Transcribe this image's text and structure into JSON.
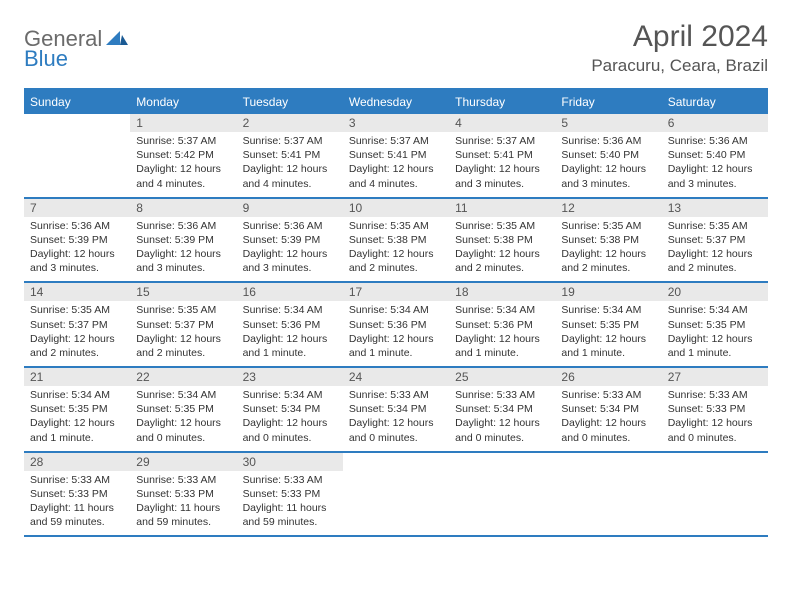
{
  "logo": {
    "general": "General",
    "blue": "Blue"
  },
  "title": "April 2024",
  "location": "Paracuru, Ceara, Brazil",
  "colors": {
    "accent": "#2e7cc0",
    "header_bg": "#2e7cc0",
    "header_text": "#ffffff",
    "daynum_bg": "#e9e9e9",
    "text": "#333333",
    "title_text": "#555555",
    "logo_gray": "#6b6b6b"
  },
  "weekdays": [
    "Sunday",
    "Monday",
    "Tuesday",
    "Wednesday",
    "Thursday",
    "Friday",
    "Saturday"
  ],
  "leading_blanks": 1,
  "days": [
    {
      "n": 1,
      "sunrise": "5:37 AM",
      "sunset": "5:42 PM",
      "daylight": "12 hours and 4 minutes."
    },
    {
      "n": 2,
      "sunrise": "5:37 AM",
      "sunset": "5:41 PM",
      "daylight": "12 hours and 4 minutes."
    },
    {
      "n": 3,
      "sunrise": "5:37 AM",
      "sunset": "5:41 PM",
      "daylight": "12 hours and 4 minutes."
    },
    {
      "n": 4,
      "sunrise": "5:37 AM",
      "sunset": "5:41 PM",
      "daylight": "12 hours and 3 minutes."
    },
    {
      "n": 5,
      "sunrise": "5:36 AM",
      "sunset": "5:40 PM",
      "daylight": "12 hours and 3 minutes."
    },
    {
      "n": 6,
      "sunrise": "5:36 AM",
      "sunset": "5:40 PM",
      "daylight": "12 hours and 3 minutes."
    },
    {
      "n": 7,
      "sunrise": "5:36 AM",
      "sunset": "5:39 PM",
      "daylight": "12 hours and 3 minutes."
    },
    {
      "n": 8,
      "sunrise": "5:36 AM",
      "sunset": "5:39 PM",
      "daylight": "12 hours and 3 minutes."
    },
    {
      "n": 9,
      "sunrise": "5:36 AM",
      "sunset": "5:39 PM",
      "daylight": "12 hours and 3 minutes."
    },
    {
      "n": 10,
      "sunrise": "5:35 AM",
      "sunset": "5:38 PM",
      "daylight": "12 hours and 2 minutes."
    },
    {
      "n": 11,
      "sunrise": "5:35 AM",
      "sunset": "5:38 PM",
      "daylight": "12 hours and 2 minutes."
    },
    {
      "n": 12,
      "sunrise": "5:35 AM",
      "sunset": "5:38 PM",
      "daylight": "12 hours and 2 minutes."
    },
    {
      "n": 13,
      "sunrise": "5:35 AM",
      "sunset": "5:37 PM",
      "daylight": "12 hours and 2 minutes."
    },
    {
      "n": 14,
      "sunrise": "5:35 AM",
      "sunset": "5:37 PM",
      "daylight": "12 hours and 2 minutes."
    },
    {
      "n": 15,
      "sunrise": "5:35 AM",
      "sunset": "5:37 PM",
      "daylight": "12 hours and 2 minutes."
    },
    {
      "n": 16,
      "sunrise": "5:34 AM",
      "sunset": "5:36 PM",
      "daylight": "12 hours and 1 minute."
    },
    {
      "n": 17,
      "sunrise": "5:34 AM",
      "sunset": "5:36 PM",
      "daylight": "12 hours and 1 minute."
    },
    {
      "n": 18,
      "sunrise": "5:34 AM",
      "sunset": "5:36 PM",
      "daylight": "12 hours and 1 minute."
    },
    {
      "n": 19,
      "sunrise": "5:34 AM",
      "sunset": "5:35 PM",
      "daylight": "12 hours and 1 minute."
    },
    {
      "n": 20,
      "sunrise": "5:34 AM",
      "sunset": "5:35 PM",
      "daylight": "12 hours and 1 minute."
    },
    {
      "n": 21,
      "sunrise": "5:34 AM",
      "sunset": "5:35 PM",
      "daylight": "12 hours and 1 minute."
    },
    {
      "n": 22,
      "sunrise": "5:34 AM",
      "sunset": "5:35 PM",
      "daylight": "12 hours and 0 minutes."
    },
    {
      "n": 23,
      "sunrise": "5:34 AM",
      "sunset": "5:34 PM",
      "daylight": "12 hours and 0 minutes."
    },
    {
      "n": 24,
      "sunrise": "5:33 AM",
      "sunset": "5:34 PM",
      "daylight": "12 hours and 0 minutes."
    },
    {
      "n": 25,
      "sunrise": "5:33 AM",
      "sunset": "5:34 PM",
      "daylight": "12 hours and 0 minutes."
    },
    {
      "n": 26,
      "sunrise": "5:33 AM",
      "sunset": "5:34 PM",
      "daylight": "12 hours and 0 minutes."
    },
    {
      "n": 27,
      "sunrise": "5:33 AM",
      "sunset": "5:33 PM",
      "daylight": "12 hours and 0 minutes."
    },
    {
      "n": 28,
      "sunrise": "5:33 AM",
      "sunset": "5:33 PM",
      "daylight": "11 hours and 59 minutes."
    },
    {
      "n": 29,
      "sunrise": "5:33 AM",
      "sunset": "5:33 PM",
      "daylight": "11 hours and 59 minutes."
    },
    {
      "n": 30,
      "sunrise": "5:33 AM",
      "sunset": "5:33 PM",
      "daylight": "11 hours and 59 minutes."
    }
  ],
  "labels": {
    "sunrise": "Sunrise:",
    "sunset": "Sunset:",
    "daylight": "Daylight:"
  }
}
